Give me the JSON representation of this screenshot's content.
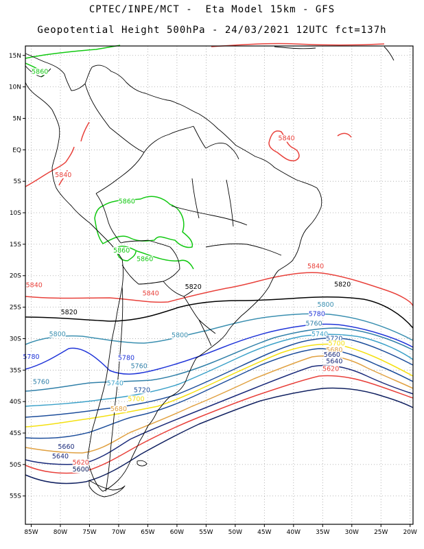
{
  "header": {
    "line1": "CPTEC/INPE/MCT -  Eta Model 15km - GFS",
    "line2": "Geopotential Height 500hPa - 24/03/2021 12UTC fct=137h"
  },
  "axes": {
    "lat_labels": [
      "15N",
      "10N",
      "5N",
      "EQ",
      "5S",
      "10S",
      "15S",
      "20S",
      "25S",
      "30S",
      "35S",
      "40S",
      "45S",
      "50S",
      "55S"
    ],
    "lon_labels": [
      "85W",
      "80W",
      "75W",
      "70W",
      "65W",
      "60W",
      "55W",
      "50W",
      "45W",
      "40W",
      "35W",
      "30W",
      "25W",
      "20W"
    ],
    "lat_range": [
      16.5,
      -59.5
    ],
    "lon_range": [
      -86,
      -19.5
    ],
    "grid": "dotted"
  },
  "colors": {
    "5860": "#10c810",
    "5840": "#e8403a",
    "5820": "#000000",
    "5800": "#3a8fb0",
    "5780": "#1f34d8",
    "5760": "#2f7fa8",
    "5740": "#3aa0c8",
    "5720": "#1b4c9a",
    "5700": "#f4e010",
    "5680": "#e0a040",
    "5660": "#1a2a7a",
    "5640": "#1a2a7a",
    "5620": "#e8403a",
    "5600": "#102060",
    "coast": "#000000"
  },
  "contour_labels": [
    {
      "text": "5860",
      "lvl": "5860",
      "lon": -83.5,
      "lat": 12.2
    },
    {
      "text": "5860",
      "lvl": "5860",
      "lon": -68.6,
      "lat": -8.4
    },
    {
      "text": "5860",
      "lvl": "5860",
      "lon": -69.5,
      "lat": -16.2
    },
    {
      "text": "5860",
      "lvl": "5860",
      "lon": -65.5,
      "lat": -17.6
    },
    {
      "text": "5840",
      "lvl": "5840",
      "lon": -79.5,
      "lat": -4.2
    },
    {
      "text": "5840",
      "lvl": "5840",
      "lon": -41.2,
      "lat": 1.6
    },
    {
      "text": "5840",
      "lvl": "5840",
      "lon": -84.5,
      "lat": -21.7
    },
    {
      "text": "5840",
      "lvl": "5840",
      "lon": -64.5,
      "lat": -23.0
    },
    {
      "text": "5840",
      "lvl": "5840",
      "lon": -36.2,
      "lat": -18.7
    },
    {
      "text": "5820",
      "lvl": "5820",
      "lon": -78.5,
      "lat": -26.0
    },
    {
      "text": "5820",
      "lvl": "5820",
      "lon": -57.2,
      "lat": -22.0
    },
    {
      "text": "5820",
      "lvl": "5820",
      "lon": -31.6,
      "lat": -21.6
    },
    {
      "text": "5800",
      "lvl": "5800",
      "lon": -80.5,
      "lat": -29.5
    },
    {
      "text": "5800",
      "lvl": "5800",
      "lon": -59.5,
      "lat": -29.7
    },
    {
      "text": "5800",
      "lvl": "5800",
      "lon": -34.5,
      "lat": -24.8
    },
    {
      "text": "5780",
      "lvl": "5780",
      "lon": -85.0,
      "lat": -33.1
    },
    {
      "text": "5780",
      "lvl": "5780",
      "lon": -68.7,
      "lat": -33.3
    },
    {
      "text": "5780",
      "lvl": "5780",
      "lon": -36.0,
      "lat": -26.3
    },
    {
      "text": "5760",
      "lvl": "5760",
      "lon": -83.3,
      "lat": -37.1
    },
    {
      "text": "5760",
      "lvl": "5760",
      "lon": -66.5,
      "lat": -34.6
    },
    {
      "text": "5760",
      "lvl": "5760",
      "lon": -36.5,
      "lat": -27.8
    },
    {
      "text": "5740",
      "lvl": "5740",
      "lon": -70.6,
      "lat": -37.3
    },
    {
      "text": "5740",
      "lvl": "5740",
      "lon": -35.5,
      "lat": -29.5
    },
    {
      "text": "5720",
      "lvl": "5720",
      "lon": -66.0,
      "lat": -38.4
    },
    {
      "text": "5720",
      "lvl": "5720",
      "lon": -33.0,
      "lat": -30.2
    },
    {
      "text": "5700",
      "lvl": "5700",
      "lon": -67.0,
      "lat": -39.8
    },
    {
      "text": "5700",
      "lvl": "5700",
      "lon": -32.6,
      "lat": -31.0
    },
    {
      "text": "5680",
      "lvl": "5680",
      "lon": -70.0,
      "lat": -41.4
    },
    {
      "text": "5680",
      "lvl": "5680",
      "lon": -33.0,
      "lat": -32.0
    },
    {
      "text": "5660",
      "lvl": "5660",
      "lon": -33.4,
      "lat": -32.8
    },
    {
      "text": "5660",
      "lvl": "5660",
      "lon": -79.0,
      "lat": -47.4
    },
    {
      "text": "5640",
      "lvl": "5640",
      "lon": -33.0,
      "lat": -33.8
    },
    {
      "text": "5640",
      "lvl": "5640",
      "lon": -80.0,
      "lat": -48.9
    },
    {
      "text": "5620",
      "lvl": "5620",
      "lon": -33.6,
      "lat": -35.0
    },
    {
      "text": "5620",
      "lvl": "5620",
      "lon": -76.5,
      "lat": -49.9
    },
    {
      "text": "5600",
      "lvl": "5600",
      "lon": -76.5,
      "lat": -51.0
    }
  ]
}
